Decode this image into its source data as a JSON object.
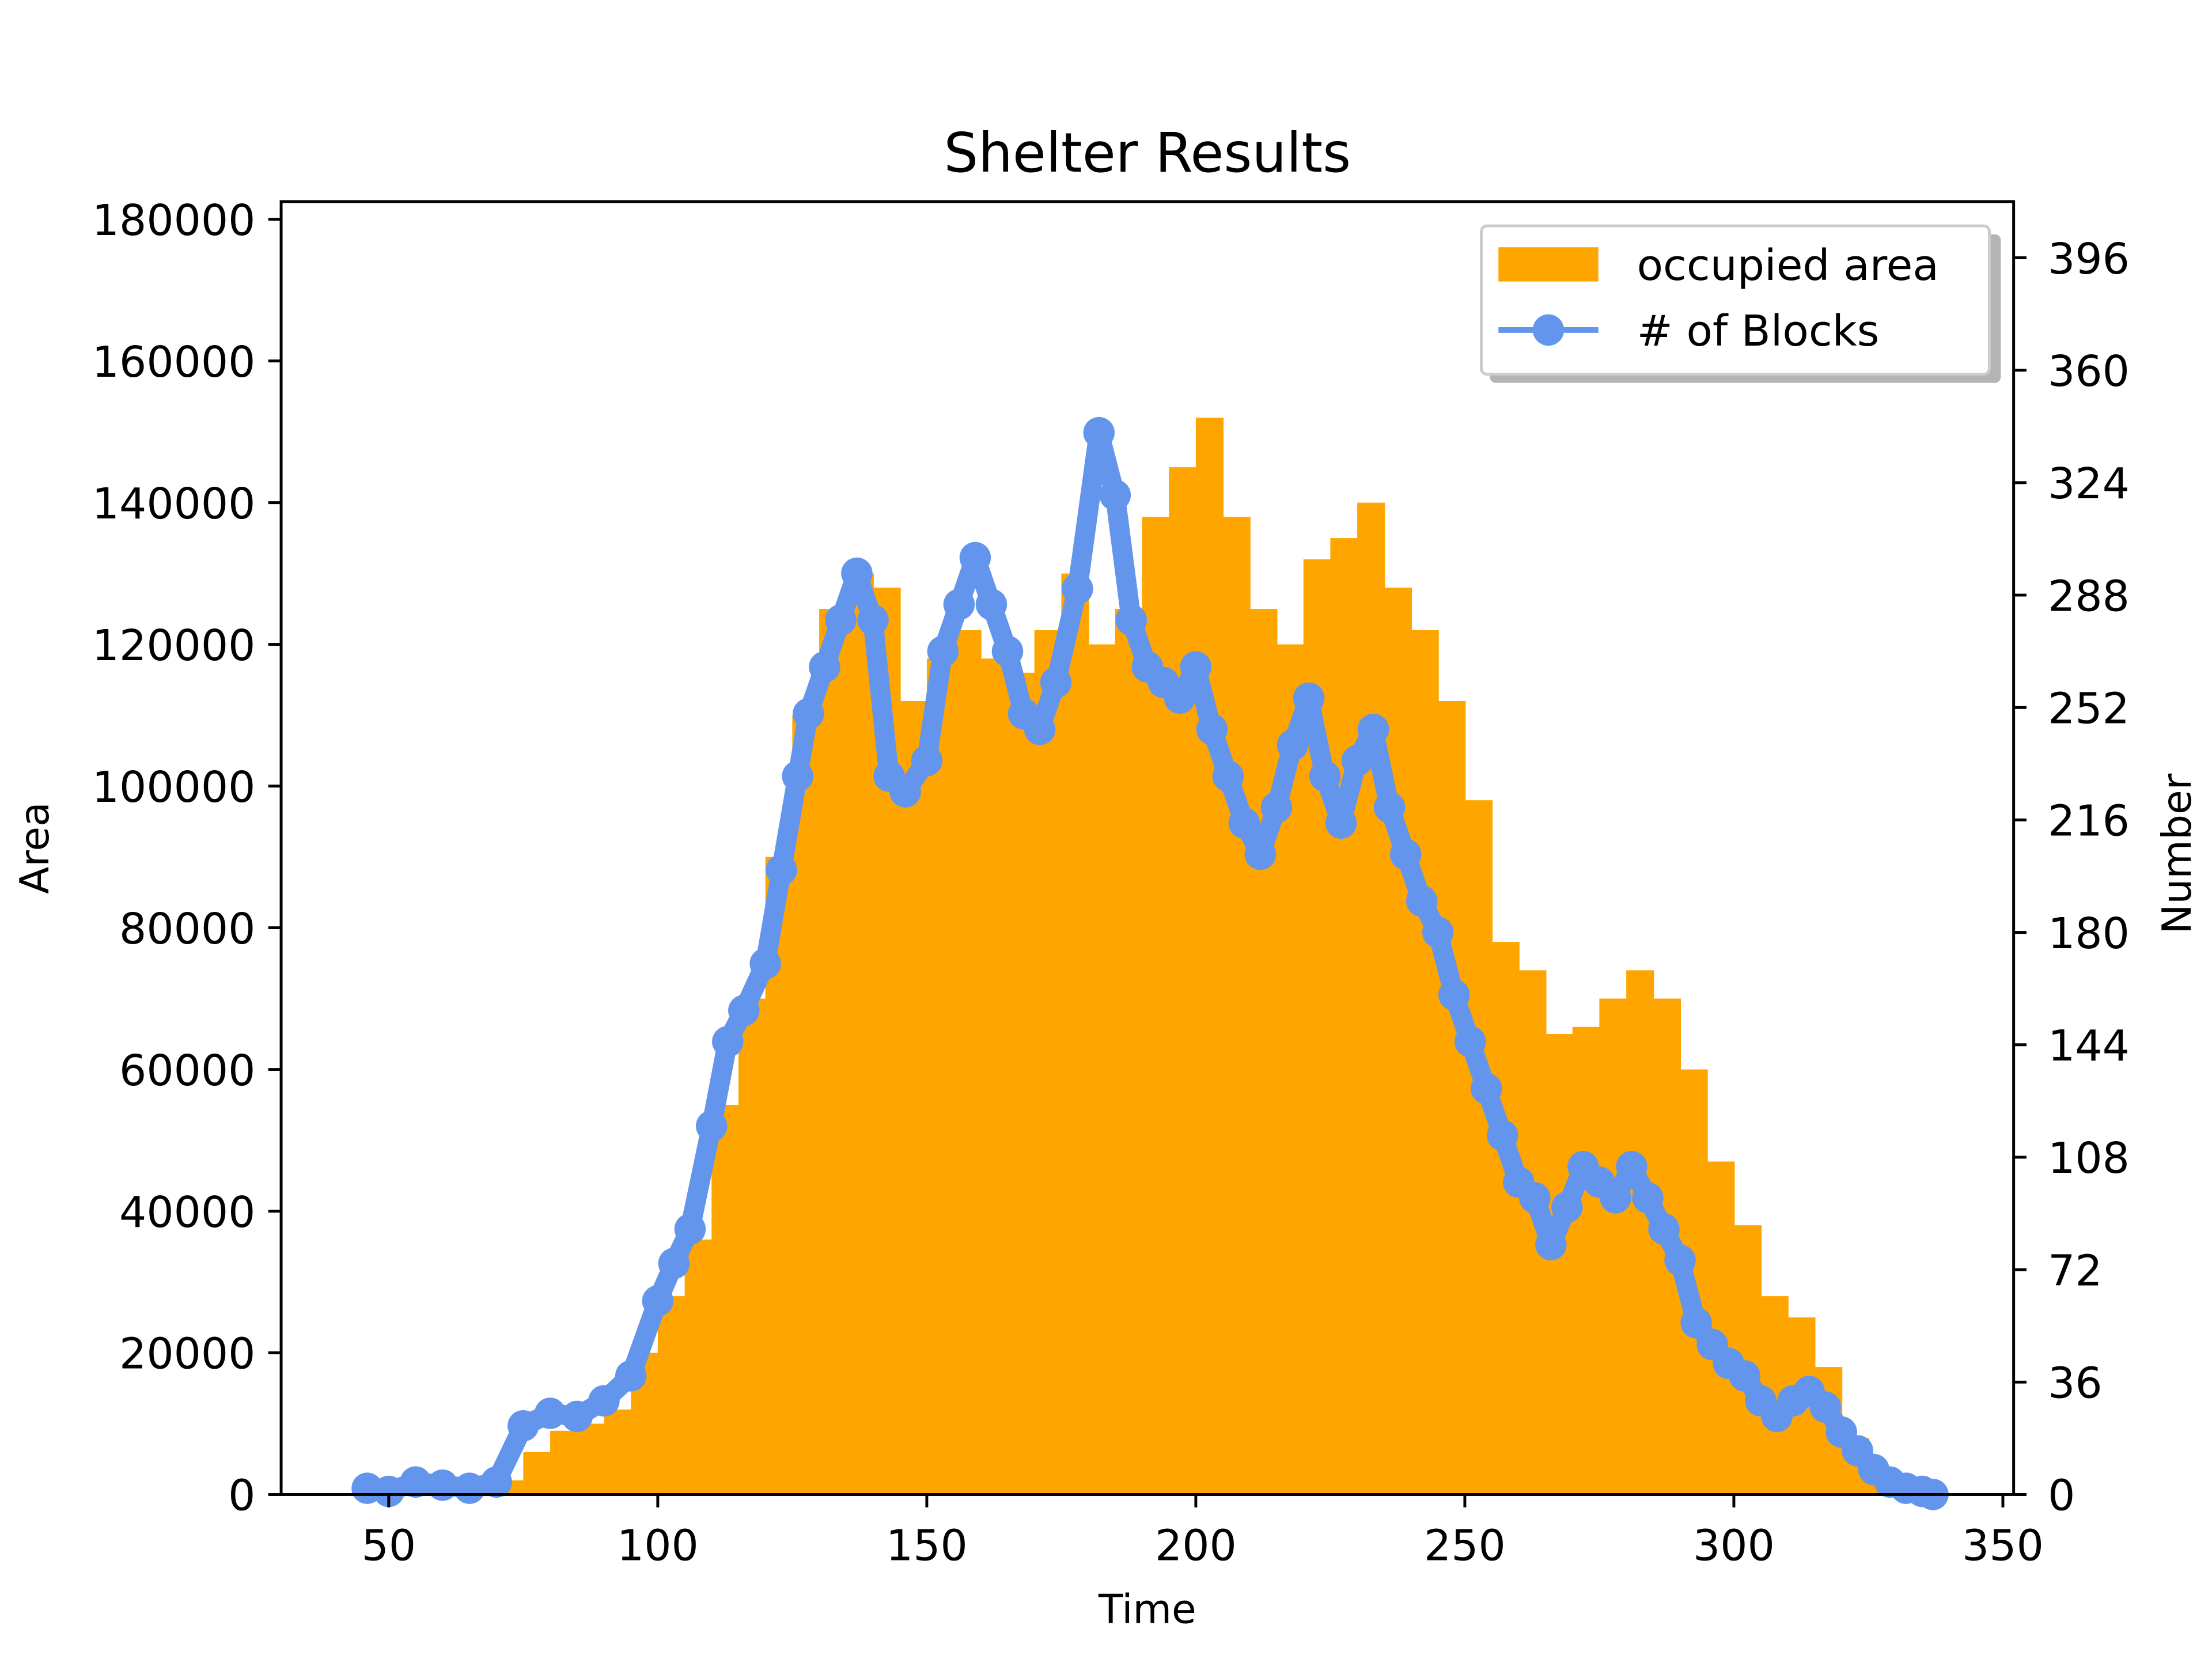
{
  "chart_data": {
    "type": "bar",
    "title": "Shelter Results",
    "xlabel": "Time",
    "ylabel": "Area",
    "y2label": "Number",
    "xlim": [
      30,
      352
    ],
    "ylim": [
      0,
      182500
    ],
    "y2lim": [
      0,
      414
    ],
    "xticks": [
      50,
      100,
      150,
      200,
      250,
      300,
      350
    ],
    "yticks": [
      0,
      20000,
      40000,
      60000,
      80000,
      100000,
      120000,
      140000,
      160000,
      180000
    ],
    "y2ticks": [
      0,
      36,
      72,
      108,
      144,
      180,
      216,
      252,
      288,
      324,
      360,
      396
    ],
    "grid": false,
    "legend_position": "upper right",
    "series": [
      {
        "name": "occupied area",
        "kind": "step-fill",
        "axis": "left",
        "color": "#FFA500",
        "x": [
          70,
          75,
          80,
          85,
          90,
          95,
          100,
          105,
          110,
          115,
          120,
          125,
          130,
          135,
          140,
          145,
          150,
          155,
          160,
          165,
          170,
          175,
          180,
          185,
          190,
          195,
          200,
          205,
          210,
          215,
          220,
          225,
          230,
          235,
          240,
          245,
          250,
          255,
          260,
          265,
          270,
          275,
          280,
          285,
          290,
          295,
          300,
          305,
          310,
          315,
          320,
          325
        ],
        "y": [
          2000,
          6000,
          9000,
          10000,
          12000,
          20000,
          28000,
          36000,
          55000,
          70000,
          90000,
          110000,
          125000,
          130000,
          128000,
          112000,
          118000,
          122000,
          118000,
          116000,
          122000,
          130000,
          120000,
          125000,
          138000,
          145000,
          152000,
          138000,
          125000,
          120000,
          132000,
          135000,
          140000,
          128000,
          122000,
          112000,
          98000,
          78000,
          74000,
          65000,
          66000,
          70000,
          74000,
          70000,
          60000,
          47000,
          38000,
          28000,
          25000,
          18000,
          8000,
          2000
        ]
      },
      {
        "name": "# of Blocks",
        "kind": "line-markers",
        "axis": "right",
        "color": "#6495ED",
        "x": [
          46,
          50,
          55,
          60,
          65,
          70,
          75,
          80,
          85,
          90,
          95,
          100,
          103,
          106,
          110,
          113,
          116,
          120,
          123,
          126,
          128,
          131,
          134,
          137,
          140,
          143,
          146,
          150,
          153,
          156,
          159,
          162,
          165,
          168,
          171,
          174,
          178,
          182,
          185,
          188,
          191,
          194,
          197,
          200,
          203,
          206,
          209,
          212,
          215,
          218,
          221,
          224,
          227,
          230,
          233,
          236,
          239,
          242,
          245,
          248,
          251,
          254,
          257,
          260,
          263,
          266,
          269,
          272,
          275,
          278,
          281,
          284,
          287,
          290,
          293,
          296,
          299,
          302,
          305,
          308,
          311,
          314,
          317,
          320,
          323,
          326,
          329,
          332,
          335,
          337
        ],
        "y": [
          2,
          1,
          4,
          3,
          2,
          4,
          22,
          26,
          25,
          30,
          38,
          62,
          74,
          85,
          118,
          145,
          155,
          170,
          200,
          230,
          250,
          265,
          280,
          295,
          280,
          230,
          225,
          235,
          270,
          285,
          300,
          285,
          270,
          250,
          245,
          260,
          290,
          340,
          320,
          280,
          265,
          260,
          255,
          265,
          245,
          230,
          215,
          205,
          220,
          240,
          255,
          230,
          215,
          235,
          245,
          220,
          205,
          190,
          180,
          160,
          145,
          130,
          115,
          100,
          95,
          80,
          92,
          105,
          100,
          95,
          105,
          95,
          85,
          75,
          55,
          48,
          42,
          38,
          30,
          25,
          30,
          33,
          28,
          20,
          14,
          8,
          4,
          2,
          1,
          0
        ]
      }
    ]
  }
}
